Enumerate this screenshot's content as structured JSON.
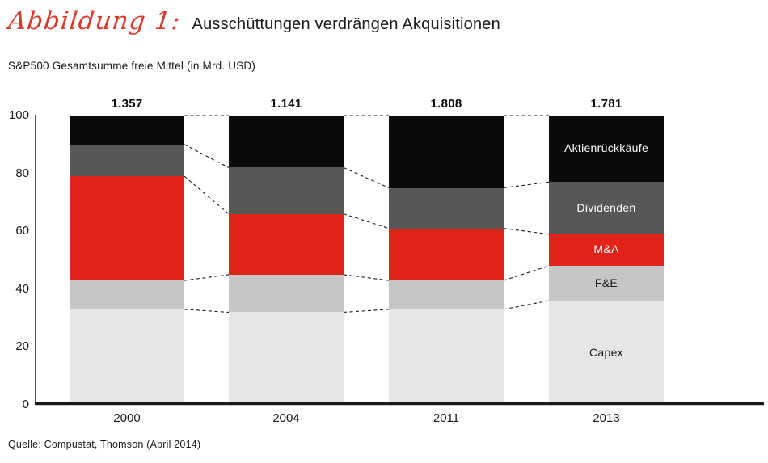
{
  "header": {
    "figure_label": "Abbildung 1:",
    "title": "Ausschüttungen verdrängen Akquisitionen"
  },
  "subtitle": "S&P500 Gesamtsumme freie Mittel (in Mrd. USD)",
  "source": "Quelle: Compustat, Thomson (April 2014)",
  "colors": {
    "script_red": "#d93a2b",
    "text": "#1a1a1a",
    "axis": "#0b0b09",
    "connector": "#1a1a1a"
  },
  "chart_data": {
    "type": "bar",
    "stacked": true,
    "normalized": true,
    "title": "Ausschüttungen verdrängen Akquisitionen",
    "subtitle": "S&P500 Gesamtsumme freie Mittel (in Mrd. USD)",
    "categories": [
      "2000",
      "2004",
      "2011",
      "2013"
    ],
    "totals": [
      "1.357",
      "1.141",
      "1.808",
      "1.781"
    ],
    "yticks": [
      0,
      20,
      40,
      60,
      80,
      100
    ],
    "ylim": [
      0,
      100
    ],
    "grid": false,
    "legend_position": "inside-last-bar",
    "series": [
      {
        "name": "Capex",
        "color": "#e6e6e4",
        "label_color": "#1a1a1a",
        "values": [
          33,
          32,
          33,
          36
        ]
      },
      {
        "name": "F&E",
        "color": "#c6c6c6",
        "label_color": "#1a1a1a",
        "values": [
          10,
          13,
          10,
          12
        ]
      },
      {
        "name": "M&A",
        "color": "#e2231a",
        "label_color": "#ffffff",
        "values": [
          36,
          21,
          18,
          11
        ]
      },
      {
        "name": "Dividenden",
        "color": "#575756",
        "label_color": "#ffffff",
        "values": [
          11,
          16,
          14,
          18
        ]
      },
      {
        "name": "Aktienrückkäufe",
        "color": "#0b0b09",
        "label_color": "#ffffff",
        "values": [
          10,
          18,
          25,
          23
        ]
      }
    ],
    "connector_lines": "dashed lines join segment boundaries of adjacent bars"
  }
}
